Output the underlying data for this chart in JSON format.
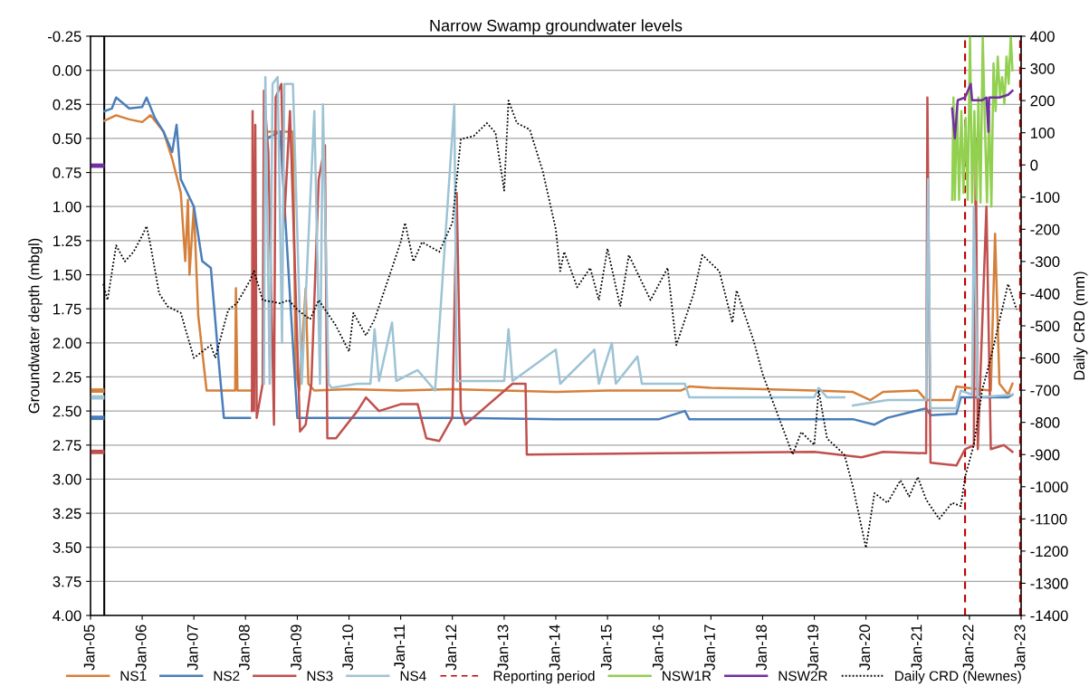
{
  "chart_data": {
    "type": "line",
    "title": "Narrow Swamp groundwater levels",
    "ylabel": "Groundwater depth (mbgl)",
    "y2label": "Daily CRD (mm)",
    "xlim": [
      "2005-01-01",
      "2023-01-01"
    ],
    "xticks": [
      {
        "value": "2005-01-01",
        "label": "Jan-05"
      },
      {
        "value": "2006-01-01",
        "label": "Jan-06"
      },
      {
        "value": "2007-01-01",
        "label": "Jan-07"
      },
      {
        "value": "2008-01-01",
        "label": "Jan-08"
      },
      {
        "value": "2009-01-01",
        "label": "Jan-09"
      },
      {
        "value": "2010-01-01",
        "label": "Jan-10"
      },
      {
        "value": "2011-01-01",
        "label": "Jan-11"
      },
      {
        "value": "2012-01-01",
        "label": "Jan-12"
      },
      {
        "value": "2013-01-01",
        "label": "Jan-13"
      },
      {
        "value": "2014-01-01",
        "label": "Jan-14"
      },
      {
        "value": "2015-01-01",
        "label": "Jan-15"
      },
      {
        "value": "2016-01-01",
        "label": "Jan-16"
      },
      {
        "value": "2017-01-01",
        "label": "Jan-17"
      },
      {
        "value": "2018-01-01",
        "label": "Jan-18"
      },
      {
        "value": "2019-01-01",
        "label": "Jan-19"
      },
      {
        "value": "2020-01-01",
        "label": "Jan-20"
      },
      {
        "value": "2021-01-01",
        "label": "Jan-21"
      },
      {
        "value": "2022-01-01",
        "label": "Jan-22"
      },
      {
        "value": "2023-01-01",
        "label": "Jan-23"
      }
    ],
    "ylim": [
      4.0,
      -0.25
    ],
    "yticks": [
      {
        "value": -0.25,
        "label": "-0.25"
      },
      {
        "value": 0,
        "label": "0.00"
      },
      {
        "value": 0.25,
        "label": "0.25"
      },
      {
        "value": 0.5,
        "label": "0.50"
      },
      {
        "value": 0.75,
        "label": "0.75"
      },
      {
        "value": 1,
        "label": "1.00"
      },
      {
        "value": 1.25,
        "label": "1.25"
      },
      {
        "value": 1.5,
        "label": "1.50"
      },
      {
        "value": 1.75,
        "label": "1.75"
      },
      {
        "value": 2,
        "label": "2.00"
      },
      {
        "value": 2.25,
        "label": "2.25"
      },
      {
        "value": 2.5,
        "label": "2.50"
      },
      {
        "value": 2.75,
        "label": "2.75"
      },
      {
        "value": 3,
        "label": "3.00"
      },
      {
        "value": 3.25,
        "label": "3.25"
      },
      {
        "value": 3.5,
        "label": "3.50"
      },
      {
        "value": 3.75,
        "label": "3.75"
      },
      {
        "value": 4,
        "label": "4.00"
      }
    ],
    "y2lim": [
      -1400,
      400
    ],
    "y2ticks": [
      -1400,
      -1300,
      -1200,
      -1100,
      -1000,
      -900,
      -800,
      -700,
      -600,
      -500,
      -400,
      -300,
      -200,
      -100,
      0,
      100,
      200,
      300,
      400
    ],
    "grid": "y",
    "legend": "bottom",
    "ref_lines": [
      {
        "axis": "x",
        "value": "2005-04-08",
        "color": "#000000",
        "line_style": "solid"
      },
      {
        "axis": "x",
        "value": "2021-12-01",
        "label": "Reporting period",
        "color": "#c00000",
        "line_style": "dashed"
      },
      {
        "axis": "x",
        "value": "2022-12-25",
        "color": "#c00000",
        "line_style": "dashed"
      }
    ],
    "series": [
      {
        "color": "#d5803a",
        "x": [
          "2005-01-01",
          "2005-03-25"
        ],
        "values": [
          2.35,
          2.35
        ]
      },
      {
        "color": "#4a7ebb",
        "x": [
          "2005-01-01",
          "2005-03-25"
        ],
        "values": [
          2.55,
          2.55
        ]
      },
      {
        "color": "#c0504d",
        "x": [
          "2005-01-01",
          "2005-03-25"
        ],
        "values": [
          2.8,
          2.8
        ]
      },
      {
        "color": "#9dc3d4",
        "x": [
          "2005-01-01",
          "2005-03-25"
        ],
        "values": [
          2.4,
          2.4
        ]
      },
      {
        "color": "#7030a0",
        "x": [
          "2005-01-01",
          "2005-03-25"
        ],
        "values": [
          0.7,
          0.7
        ]
      },
      {
        "name": "NS1",
        "color": "#d5803a",
        "x": [
          "2005-04-10",
          "2005-07",
          "2005-10",
          "2006-01",
          "2006-03",
          "2006-06",
          "2006-08",
          "2006-10",
          "2006-11",
          "2006-11-20",
          "2006-12",
          "2007-01",
          "2007-02",
          "2007-04",
          "2007-10-20",
          "2007-10-25",
          "2007-11-05",
          "2008-03-01",
          "2008-03-15",
          "2008-06-01",
          "2008-09",
          "2008-12",
          "2008-12-20",
          "2009-01-15",
          "2009-03",
          "2009-03-20",
          "2009-05",
          "2010-01",
          "2011-01",
          "2012-01",
          "2013-01",
          "2014-01",
          "2015-01",
          "2016-06",
          "2016-08",
          "2017-01",
          "2018-01",
          "2019-01",
          "2019-10",
          "2020-02",
          "2020-05",
          "2021-01",
          "2021-03",
          "2021-09",
          "2021-10",
          "2022-03",
          "2022-06",
          "2022-07",
          "2022-08",
          "2022-10",
          "2022-11"
        ],
        "values": [
          0.37,
          0.33,
          0.36,
          0.38,
          0.33,
          0.45,
          0.65,
          0.9,
          1.4,
          0.95,
          1.5,
          1.0,
          1.8,
          2.35,
          2.35,
          1.6,
          2.35,
          2.35,
          null,
          0.45,
          0.45,
          0.45,
          2.2,
          2.35,
          1.6,
          2.3,
          2.35,
          2.34,
          2.35,
          2.34,
          2.35,
          2.36,
          2.35,
          2.35,
          2.32,
          2.33,
          2.34,
          2.35,
          2.36,
          2.42,
          2.36,
          2.35,
          2.42,
          2.42,
          2.32,
          2.34,
          2.35,
          1.2,
          2.3,
          2.38,
          2.3
        ]
      },
      {
        "name": "NS2",
        "color": "#4a7ebb",
        "x": [
          "2005-04-10",
          "2005-06",
          "2005-07",
          "2005-10",
          "2006-01",
          "2006-02",
          "2006-04",
          "2006-06",
          "2006-08",
          "2006-09",
          "2006-10",
          "2007-01",
          "2007-03",
          "2007-05",
          "2007-07",
          "2007-08",
          "2007-12",
          "2008-02",
          "2008-03",
          "2008-06",
          "2008-09",
          "2009-01",
          "2012-01",
          "2014-01",
          "2016-01",
          "2016-07",
          "2016-08",
          "2019-10",
          "2020-03",
          "2020-06",
          "2021-03",
          "2021-04",
          "2021-10",
          "2021-11",
          "2022-10",
          "2022-11"
        ],
        "values": [
          0.3,
          0.28,
          0.2,
          0.28,
          0.27,
          0.2,
          0.35,
          0.45,
          0.6,
          0.4,
          0.8,
          1.0,
          1.4,
          1.45,
          2.2,
          2.55,
          2.55,
          2.55,
          null,
          0.5,
          0.45,
          2.55,
          2.55,
          2.56,
          2.56,
          2.5,
          2.56,
          2.56,
          2.6,
          2.55,
          2.48,
          2.53,
          2.52,
          2.4,
          2.4,
          2.38
        ]
      },
      {
        "name": "NS3",
        "color": "#c0504d",
        "x": [
          "2008-02-15",
          "2008-02-20",
          "2008-03-01",
          "2008-03-10",
          "2008-03-20",
          "2008-05-01",
          "2008-05-10",
          "2008-06-10",
          "2008-07-20",
          "2008-08-01",
          "2008-09-10",
          "2008-10-01",
          "2008-11-10",
          "2009-01-20",
          "2009-03-01",
          "2009-04-10",
          "2009-06",
          "2009-07-15",
          "2009-08-01",
          "2009-10",
          "2010-03",
          "2010-05",
          "2010-08",
          "2011-01",
          "2011-05",
          "2011-07",
          "2011-10",
          "2012-01",
          "2012-02",
          "2012-03",
          "2012-04",
          "2013-03",
          "2013-06",
          "2013-06-10",
          "2016-01",
          "2019-01",
          "2019-12",
          "2020-05",
          "2021-03",
          "2021-03-10",
          "2021-04",
          "2021-10",
          "2021-12",
          "2022-02",
          "2022-02-15",
          "2022-03",
          "2022-05",
          "2022-06",
          "2022-09",
          "2022-11"
        ],
        "values": [
          2.5,
          0.3,
          2.5,
          0.4,
          2.55,
          2.3,
          0.15,
          0.6,
          2.6,
          0.2,
          0.1,
          1.1,
          0.3,
          2.65,
          2.6,
          2.3,
          0.8,
          0.55,
          2.7,
          2.7,
          2.5,
          2.4,
          2.5,
          2.45,
          2.45,
          2.7,
          2.72,
          2.55,
          0.9,
          2.5,
          2.6,
          2.3,
          2.3,
          2.82,
          2.81,
          2.8,
          2.84,
          2.8,
          2.81,
          0.2,
          2.88,
          2.9,
          2.78,
          2.75,
          0.5,
          2.78,
          1.0,
          2.78,
          2.75,
          2.8
        ]
      },
      {
        "name": "NS4",
        "color": "#9dc3d4",
        "x": [
          "2008-05-10",
          "2008-05-20",
          "2008-06-20",
          "2008-07-10",
          "2008-08-15",
          "2008-09-15",
          "2008-10",
          "2008-12",
          "2009-02-01",
          "2009-05",
          "2009-06-10",
          "2009-07-01",
          "2009-08-10",
          "2009-09",
          "2010-03",
          "2010-06",
          "2010-07",
          "2010-08",
          "2010-11",
          "2010-12",
          "2011-05",
          "2011-09",
          "2012-01-15",
          "2012-02",
          "2013-01",
          "2013-02",
          "2013-03",
          "2014-01",
          "2014-02",
          "2014-10",
          "2014-11",
          "2015-02",
          "2015-03",
          "2015-08",
          "2015-09",
          "2016-07",
          "2016-08",
          "2019-01",
          "2019-02",
          "2019-04",
          "2019-08",
          "2019-09",
          "2019-10",
          "2020-06",
          "2021-03",
          "2021-03-15",
          "2021-04",
          "2021-10",
          "2021-11",
          "2022-01-20",
          "2022-02-01",
          "2022-03",
          "2022-11"
        ],
        "values": [
          2.3,
          0.05,
          2.3,
          0.1,
          0.05,
          2.0,
          0.1,
          0.1,
          2.3,
          0.3,
          2.3,
          0.25,
          2.3,
          2.33,
          2.3,
          2.3,
          1.9,
          2.28,
          1.85,
          2.28,
          2.2,
          2.35,
          0.25,
          2.28,
          2.28,
          1.9,
          2.28,
          2.05,
          2.3,
          2.05,
          2.3,
          2.0,
          2.3,
          2.1,
          2.3,
          2.3,
          2.4,
          2.4,
          2.33,
          2.4,
          2.4,
          null,
          2.46,
          2.42,
          2.42,
          0.8,
          2.48,
          2.48,
          2.35,
          2.38,
          1.0,
          2.4,
          2.38
        ]
      },
      {
        "name": "NSW1R",
        "color": "#92d050",
        "x": [
          "2021-09-01",
          "2021-09-10",
          "2021-09-20",
          "2021-10-05",
          "2021-10-20",
          "2021-11-05",
          "2021-11-20",
          "2021-12-05",
          "2021-12-20",
          "2022-01-05",
          "2022-01-20",
          "2022-02-05",
          "2022-02-20",
          "2022-03-05",
          "2022-03-20",
          "2022-04-05",
          "2022-04-20",
          "2022-05-05",
          "2022-05-20",
          "2022-06-05",
          "2022-06-20",
          "2022-07-05",
          "2022-07-20",
          "2022-08-05",
          "2022-08-20",
          "2022-09-05",
          "2022-09-20",
          "2022-10-05",
          "2022-10-20",
          "2022-11-01"
        ],
        "values": [
          0.95,
          0.2,
          0.95,
          0.25,
          0.95,
          0.3,
          0.9,
          0.35,
          0.95,
          -0.25,
          0.97,
          0.3,
          0.95,
          0.2,
          0.97,
          -0.25,
          0.4,
          0.97,
          0.3,
          1.0,
          -0.05,
          0.3,
          -0.1,
          0.2,
          0.05,
          0.25,
          -0.1,
          0.1,
          -0.25,
          0.0
        ]
      },
      {
        "name": "NSW2R",
        "color": "#7030a0",
        "x": [
          "2021-09-01",
          "2021-09-20",
          "2021-10-10",
          "2021-12",
          "2022-01-10",
          "2022-01-20",
          "2022-04",
          "2022-05",
          "2022-05-15",
          "2022-05-20",
          "2022-08",
          "2022-10",
          "2022-11"
        ],
        "values": [
          0.28,
          0.5,
          0.22,
          0.2,
          0.1,
          0.22,
          0.22,
          0.2,
          0.45,
          0.2,
          0.2,
          0.18,
          0.15
        ]
      },
      {
        "name": "Daily CRD (Newnes)",
        "color": "#000000",
        "axis": "y2",
        "line_style": "dotted",
        "x": [
          "2005-04",
          "2005-05",
          "2005-07",
          "2005-09",
          "2005-11",
          "2006-01",
          "2006-02",
          "2006-03",
          "2006-05",
          "2006-07",
          "2006-10",
          "2007-01",
          "2007-03",
          "2007-05",
          "2007-06",
          "2007-09",
          "2007-11",
          "2008-02",
          "2008-03",
          "2008-05",
          "2008-09",
          "2008-11",
          "2009-01",
          "2009-04",
          "2009-06",
          "2009-10",
          "2010-01",
          "2010-02",
          "2010-05",
          "2010-07",
          "2010-11",
          "2011-01",
          "2011-02",
          "2011-04",
          "2011-06",
          "2011-10",
          "2012-01",
          "2012-03",
          "2012-06",
          "2012-09",
          "2012-11",
          "2013-01",
          "2013-02",
          "2013-04",
          "2013-07",
          "2013-10",
          "2014-01",
          "2014-02",
          "2014-03",
          "2014-06",
          "2014-09",
          "2014-11",
          "2015-01",
          "2015-04",
          "2015-06",
          "2015-11",
          "2016-03",
          "2016-05",
          "2016-09",
          "2016-11",
          "2017-03",
          "2017-06",
          "2017-07",
          "2017-11",
          "2018-01",
          "2018-03",
          "2018-08",
          "2018-10",
          "2019-01",
          "2019-02",
          "2019-04",
          "2019-08",
          "2019-10",
          "2020-01",
          "2020-03",
          "2020-06",
          "2020-09",
          "2020-11",
          "2021-01",
          "2021-03",
          "2021-06",
          "2021-09",
          "2021-11",
          "2021-12",
          "2022-02",
          "2022-04",
          "2022-06",
          "2022-10",
          "2022-12"
        ],
        "values": [
          -370,
          -420,
          -250,
          -300,
          -270,
          -220,
          -190,
          -250,
          -400,
          -440,
          -460,
          -600,
          -580,
          -560,
          -600,
          -450,
          -430,
          -360,
          -330,
          -420,
          -430,
          -420,
          -450,
          -480,
          -420,
          -500,
          -580,
          -460,
          -530,
          -480,
          -320,
          -240,
          -180,
          -300,
          -240,
          -270,
          -180,
          80,
          90,
          130,
          100,
          -80,
          200,
          130,
          110,
          -20,
          -200,
          -330,
          -270,
          -380,
          -320,
          -420,
          -260,
          -440,
          -280,
          -420,
          -320,
          -560,
          -400,
          -280,
          -330,
          -490,
          -390,
          -550,
          -650,
          -720,
          -900,
          -830,
          -870,
          -700,
          -850,
          -900,
          -1000,
          -1190,
          -1020,
          -1050,
          -980,
          -1030,
          -970,
          -1040,
          -1100,
          -1050,
          -1060,
          -970,
          -870,
          -700,
          -600,
          -370,
          -450
        ]
      }
    ]
  }
}
